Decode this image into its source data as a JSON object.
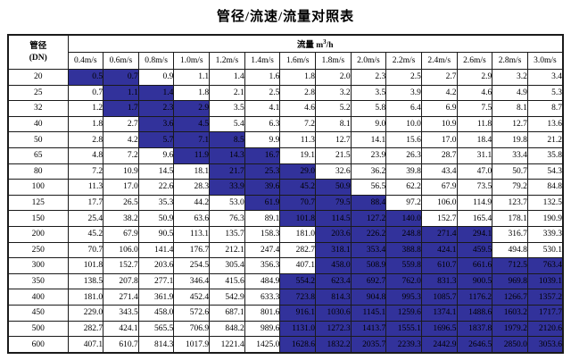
{
  "title": "管径/流速/流量对照表",
  "table": {
    "corner_header": {
      "line1": "管径",
      "line2": "(DN)"
    },
    "flow_header": {
      "prefix": "流量 m",
      "sup": "3",
      "suffix": "/h"
    },
    "velocity_headers": [
      "0.4m/s",
      "0.6m/s",
      "0.8m/s",
      "1.0m/s",
      "1.2m/s",
      "1.4m/s",
      "1.6m/s",
      "1.8m/s",
      "2.0m/s",
      "2.2m/s",
      "2.4m/s",
      "2.6m/s",
      "2.8m/s",
      "3.0m/s"
    ],
    "highlight_color": "#32329b",
    "rows": [
      {
        "dn": "20",
        "values": [
          "0.5",
          "0.7",
          "0.9",
          "1.1",
          "1.4",
          "1.6",
          "1.8",
          "2.0",
          "2.3",
          "2.5",
          "2.7",
          "2.9",
          "3.2",
          "3.4"
        ],
        "highlight": [
          0,
          1
        ]
      },
      {
        "dn": "25",
        "values": [
          "0.7",
          "1.1",
          "1.4",
          "1.8",
          "2.1",
          "2.5",
          "2.8",
          "3.2",
          "3.5",
          "3.9",
          "4.2",
          "4.6",
          "4.9",
          "5.3"
        ],
        "highlight": [
          1,
          2
        ]
      },
      {
        "dn": "32",
        "values": [
          "1.2",
          "1.7",
          "2.3",
          "2.9",
          "3.5",
          "4.1",
          "4.6",
          "5.2",
          "5.8",
          "6.4",
          "6.9",
          "7.5",
          "8.1",
          "8.7"
        ],
        "highlight": [
          1,
          3
        ]
      },
      {
        "dn": "40",
        "values": [
          "1.8",
          "2.7",
          "3.6",
          "4.5",
          "5.4",
          "6.3",
          "7.2",
          "8.1",
          "9.0",
          "10.0",
          "10.9",
          "11.8",
          "12.7",
          "13.6"
        ],
        "highlight": [
          2,
          3
        ]
      },
      {
        "dn": "50",
        "values": [
          "2.8",
          "4.2",
          "5.7",
          "7.1",
          "8.5",
          "9.9",
          "11.3",
          "12.7",
          "14.1",
          "15.6",
          "17.0",
          "18.4",
          "19.8",
          "21.2"
        ],
        "highlight": [
          2,
          4
        ]
      },
      {
        "dn": "65",
        "values": [
          "4.8",
          "7.2",
          "9.6",
          "11.9",
          "14.3",
          "16.7",
          "19.1",
          "21.5",
          "23.9",
          "26.3",
          "28.7",
          "31.1",
          "33.4",
          "35.8"
        ],
        "highlight": [
          3,
          5
        ]
      },
      {
        "dn": "80",
        "values": [
          "7.2",
          "10.9",
          "14.5",
          "18.1",
          "21.7",
          "25.3",
          "29.0",
          "32.6",
          "36.2",
          "39.8",
          "43.4",
          "47.0",
          "50.7",
          "54.3"
        ],
        "highlight": [
          4,
          6
        ]
      },
      {
        "dn": "100",
        "values": [
          "11.3",
          "17.0",
          "22.6",
          "28.3",
          "33.9",
          "39.6",
          "45.2",
          "50.9",
          "56.5",
          "62.2",
          "67.9",
          "73.5",
          "79.2",
          "84.8"
        ],
        "highlight": [
          4,
          7
        ]
      },
      {
        "dn": "125",
        "values": [
          "17.7",
          "26.5",
          "35.3",
          "44.2",
          "53.0",
          "61.9",
          "70.7",
          "79.5",
          "88.4",
          "97.2",
          "106.0",
          "114.9",
          "123.7",
          "132.5"
        ],
        "highlight": [
          5,
          8
        ]
      },
      {
        "dn": "150",
        "values": [
          "25.4",
          "38.2",
          "50.9",
          "63.6",
          "76.3",
          "89.1",
          "101.8",
          "114.5",
          "127.2",
          "140.0",
          "152.7",
          "165.4",
          "178.1",
          "190.9"
        ],
        "highlight": [
          6,
          9
        ]
      },
      {
        "dn": "200",
        "values": [
          "45.2",
          "67.9",
          "90.5",
          "113.1",
          "135.7",
          "158.3",
          "181.0",
          "203.6",
          "226.2",
          "248.8",
          "271.4",
          "294.1",
          "316.7",
          "339.3"
        ],
        "highlight": [
          7,
          11
        ]
      },
      {
        "dn": "250",
        "values": [
          "70.7",
          "106.0",
          "141.4",
          "176.7",
          "212.1",
          "247.4",
          "282.7",
          "318.1",
          "353.4",
          "388.8",
          "424.1",
          "459.5",
          "494.8",
          "530.1"
        ],
        "highlight": [
          7,
          11
        ]
      },
      {
        "dn": "300",
        "values": [
          "101.8",
          "152.7",
          "203.6",
          "254.5",
          "305.4",
          "356.3",
          "407.1",
          "458.0",
          "508.9",
          "559.8",
          "610.7",
          "661.6",
          "712.5",
          "763.4"
        ],
        "highlight": [
          7,
          13
        ]
      },
      {
        "dn": "350",
        "values": [
          "138.5",
          "207.8",
          "277.1",
          "346.4",
          "415.6",
          "484.9",
          "554.2",
          "623.4",
          "692.7",
          "762.0",
          "831.3",
          "900.5",
          "969.8",
          "1039.1"
        ],
        "highlight": [
          6,
          13
        ]
      },
      {
        "dn": "400",
        "values": [
          "181.0",
          "271.4",
          "361.9",
          "452.4",
          "542.9",
          "633.3",
          "723.8",
          "814.3",
          "904.8",
          "995.3",
          "1085.7",
          "1176.2",
          "1266.7",
          "1357.2"
        ],
        "highlight": [
          6,
          13
        ]
      },
      {
        "dn": "450",
        "values": [
          "229.0",
          "343.5",
          "458.0",
          "572.6",
          "687.1",
          "801.6",
          "916.1",
          "1030.6",
          "1145.1",
          "1259.6",
          "1374.1",
          "1488.6",
          "1603.2",
          "1717.7"
        ],
        "highlight": [
          6,
          13
        ]
      },
      {
        "dn": "500",
        "values": [
          "282.7",
          "424.1",
          "565.5",
          "706.9",
          "848.2",
          "989.6",
          "1131.0",
          "1272.3",
          "1413.7",
          "1555.1",
          "1696.5",
          "1837.8",
          "1979.2",
          "2120.6"
        ],
        "highlight": [
          6,
          13
        ]
      },
      {
        "dn": "600",
        "values": [
          "407.1",
          "610.7",
          "814.3",
          "1017.9",
          "1221.4",
          "1425.0",
          "1628.6",
          "1832.2",
          "2035.7",
          "2239.3",
          "2442.9",
          "2646.5",
          "2850.0",
          "3053.6"
        ],
        "highlight": [
          6,
          13
        ]
      }
    ]
  }
}
